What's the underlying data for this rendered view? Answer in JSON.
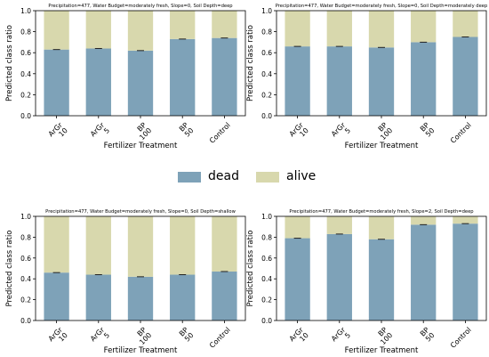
{
  "colors": {
    "dead": "#7ea2b8",
    "alive": "#d8d8ad",
    "axis": "#000000"
  },
  "legend": {
    "dead_label": "dead",
    "alive_label": "alive"
  },
  "chart_data": [
    {
      "type": "bar",
      "stacked": true,
      "title": "Precipitation=477, Water Budget=moderately fresh, Slope=0, Soil Depth=deep",
      "xlabel": "Fertilizer Treatment",
      "ylabel": "Predicted class ratio",
      "ylim": [
        0,
        1.0
      ],
      "yticks": [
        "0.0",
        "0.2",
        "0.4",
        "0.6",
        "0.8",
        "1.0"
      ],
      "categories": [
        "ArGr\n10",
        "ArGr\n5",
        "BP\n100",
        "BP\n50",
        "Control"
      ],
      "series": [
        {
          "name": "dead",
          "values": [
            0.63,
            0.64,
            0.62,
            0.73,
            0.74
          ]
        },
        {
          "name": "alive",
          "values": [
            0.37,
            0.36,
            0.38,
            0.27,
            0.26
          ]
        }
      ]
    },
    {
      "type": "bar",
      "stacked": true,
      "title": "Precipitation=477, Water Budget=moderately fresh, Slope=0, Soil Depth=moderately deep",
      "xlabel": "Fertilizer Treatment",
      "ylabel": "Predicted class ratio",
      "ylim": [
        0,
        1.0
      ],
      "yticks": [
        "0.0",
        "0.2",
        "0.4",
        "0.6",
        "0.8",
        "1.0"
      ],
      "categories": [
        "ArGr\n10",
        "ArGr\n5",
        "BP\n100",
        "BP\n50",
        "Control"
      ],
      "series": [
        {
          "name": "dead",
          "values": [
            0.66,
            0.66,
            0.65,
            0.7,
            0.75
          ]
        },
        {
          "name": "alive",
          "values": [
            0.34,
            0.34,
            0.35,
            0.3,
            0.25
          ]
        }
      ]
    },
    {
      "type": "bar",
      "stacked": true,
      "title": "Precipitation=477, Water Budget=moderately fresh, Slope=0, Soil Depth=shallow",
      "xlabel": "Fertilizer Treatment",
      "ylabel": "Predicted class ratio",
      "ylim": [
        0,
        1.0
      ],
      "yticks": [
        "0.0",
        "0.2",
        "0.4",
        "0.6",
        "0.8",
        "1.0"
      ],
      "categories": [
        "ArGr\n10",
        "ArGr\n5",
        "BP\n100",
        "BP\n50",
        "Control"
      ],
      "series": [
        {
          "name": "dead",
          "values": [
            0.46,
            0.44,
            0.42,
            0.44,
            0.47
          ]
        },
        {
          "name": "alive",
          "values": [
            0.54,
            0.56,
            0.58,
            0.56,
            0.53
          ]
        }
      ]
    },
    {
      "type": "bar",
      "stacked": true,
      "title": "Precipitation=477, Water Budget=moderately fresh, Slope=2, Soil Depth=deep",
      "xlabel": "Fertilizer Treatment",
      "ylabel": "Predicted class ratio",
      "ylim": [
        0,
        1.0
      ],
      "yticks": [
        "0.0",
        "0.2",
        "0.4",
        "0.6",
        "0.8",
        "1.0"
      ],
      "categories": [
        "ArGr\n10",
        "ArGr\n5",
        "BP\n100",
        "BP\n50",
        "Control"
      ],
      "series": [
        {
          "name": "dead",
          "values": [
            0.79,
            0.83,
            0.78,
            0.92,
            0.93
          ]
        },
        {
          "name": "alive",
          "values": [
            0.21,
            0.17,
            0.22,
            0.08,
            0.07
          ]
        }
      ]
    }
  ]
}
